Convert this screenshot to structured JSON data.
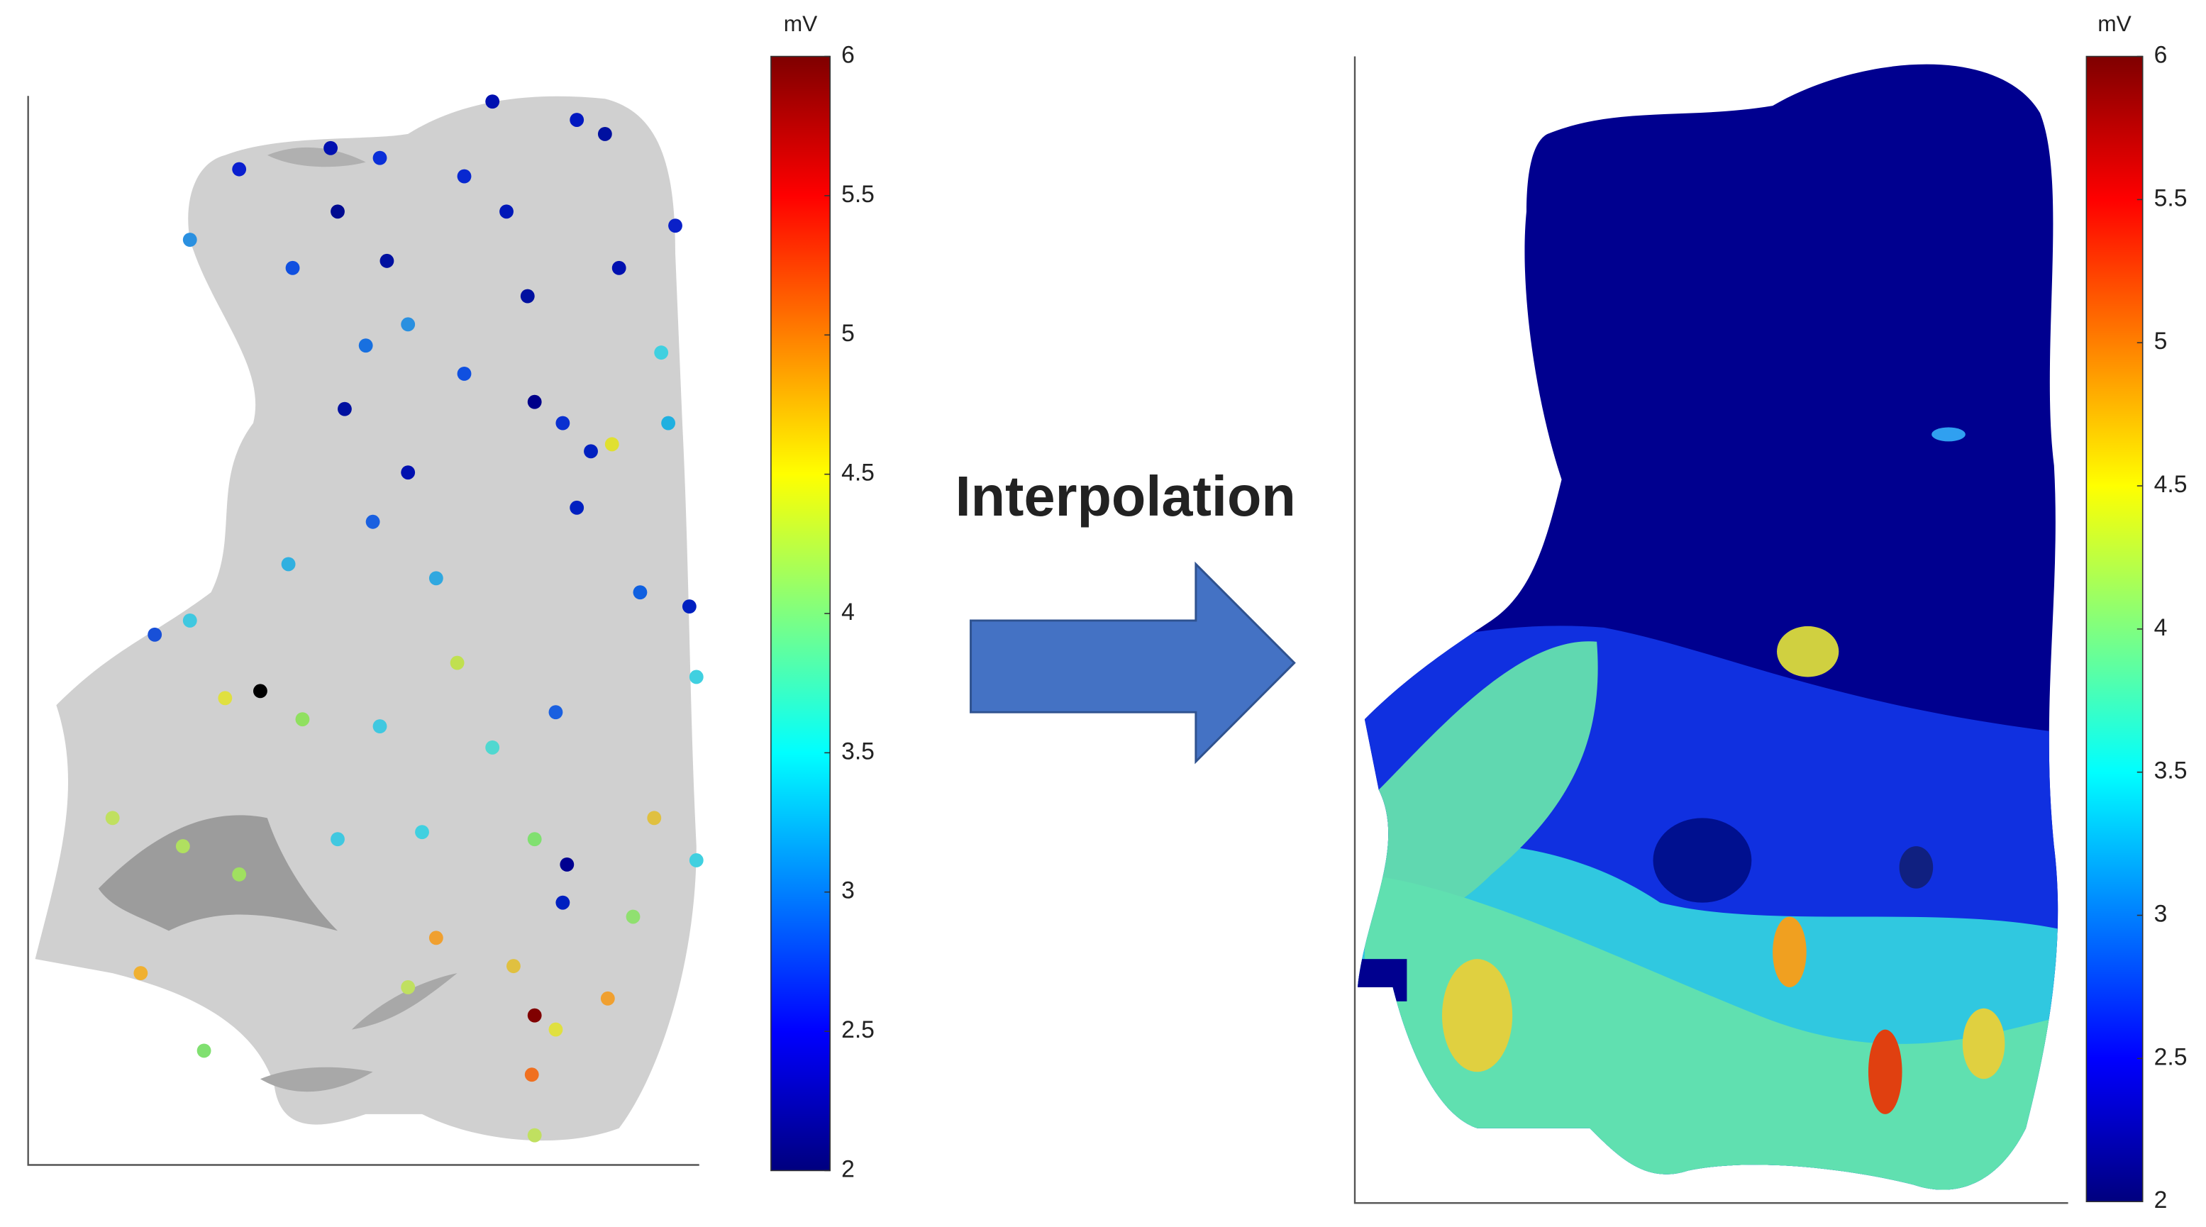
{
  "panels": [
    {
      "colorbar": {
        "unit": "mV",
        "lim": [
          2,
          6
        ],
        "ticks": [
          2,
          2.5,
          3,
          3.5,
          4,
          4.5,
          5,
          5.5,
          6
        ]
      }
    },
    {
      "colorbar": {
        "unit": "mV",
        "lim": [
          2,
          6
        ],
        "ticks": [
          2,
          2.5,
          3,
          3.5,
          4,
          4.5,
          5,
          5.5,
          6
        ]
      }
    }
  ],
  "arrow": {
    "label": "Interpolation"
  }
}
